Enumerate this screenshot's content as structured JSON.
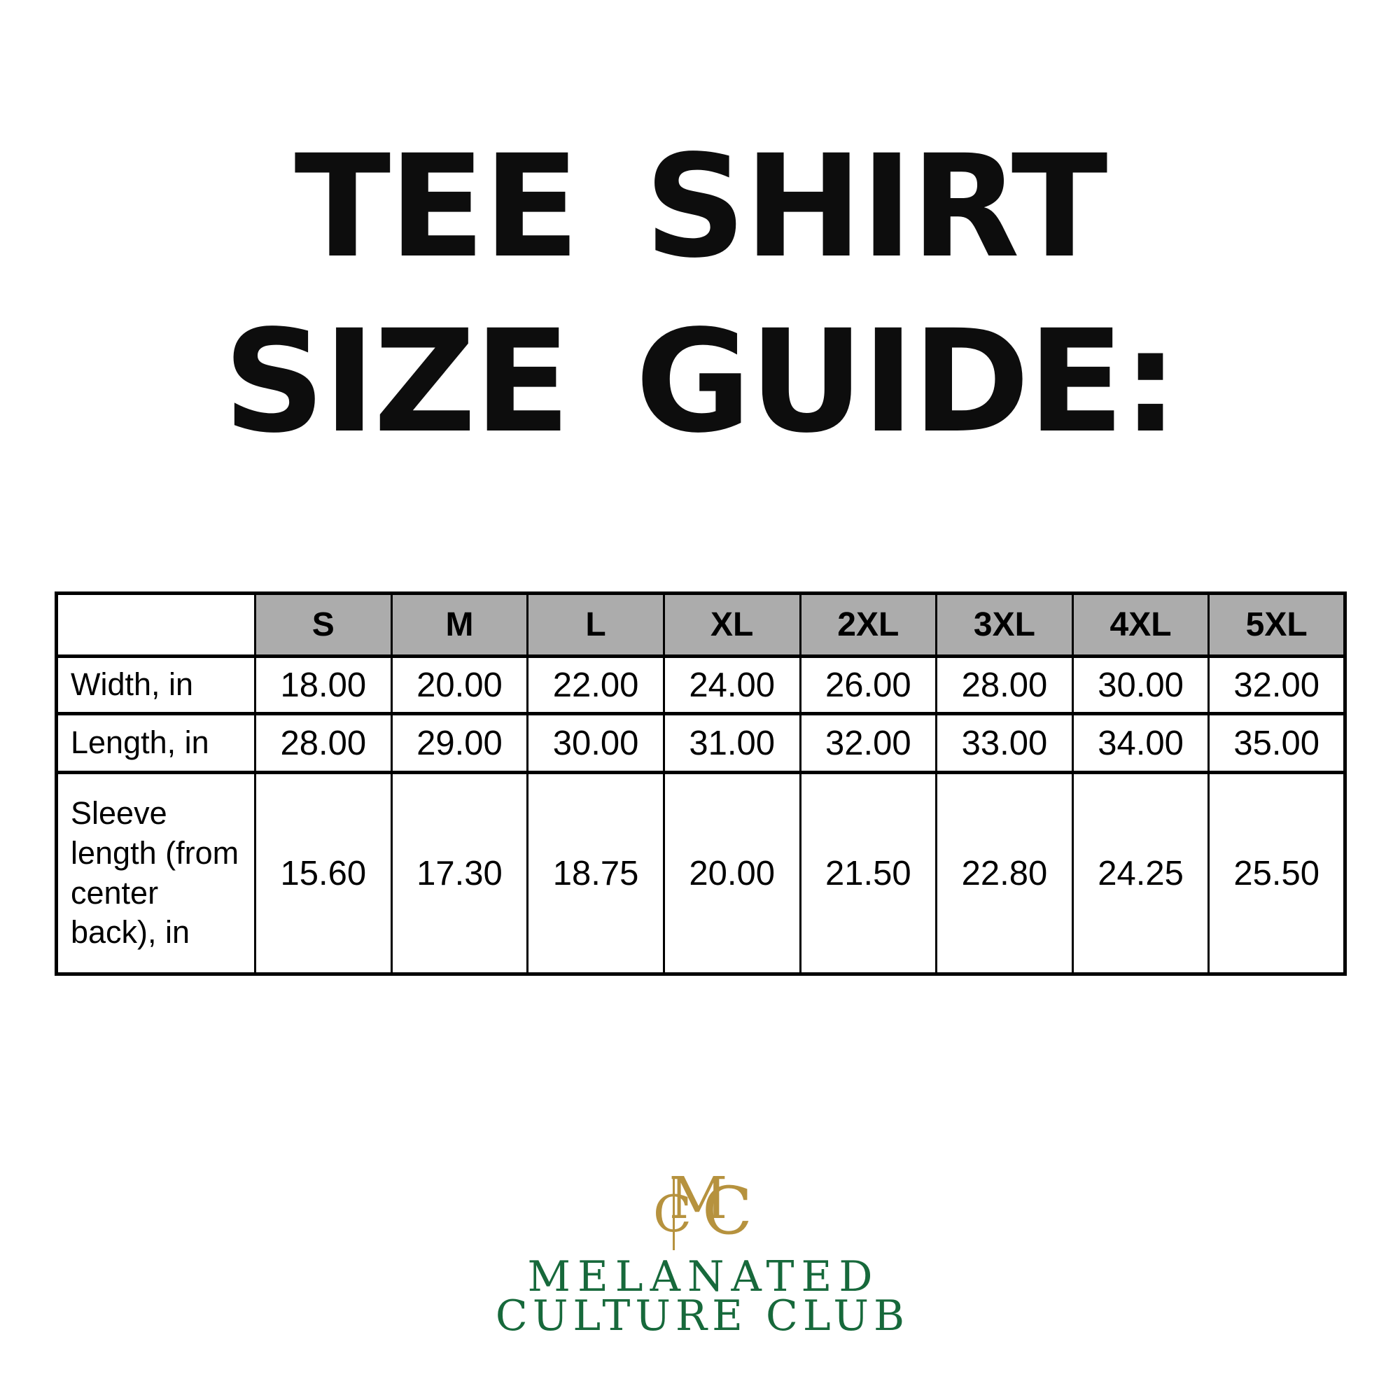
{
  "title": {
    "line1": "TEE SHIRT",
    "line2": "SIZE GUIDE:"
  },
  "size_table": {
    "corner": "",
    "columns": [
      "S",
      "M",
      "L",
      "XL",
      "2XL",
      "3XL",
      "4XL",
      "5XL"
    ],
    "rows": [
      {
        "label": "Width, in",
        "values": [
          "18.00",
          "20.00",
          "22.00",
          "24.00",
          "26.00",
          "28.00",
          "30.00",
          "32.00"
        ]
      },
      {
        "label": "Length, in",
        "values": [
          "28.00",
          "29.00",
          "30.00",
          "31.00",
          "32.00",
          "33.00",
          "34.00",
          "35.00"
        ]
      },
      {
        "label": "Sleeve\nlength (from\ncenter\nback), in",
        "values": [
          "15.60",
          "17.30",
          "18.75",
          "20.00",
          "21.50",
          "22.80",
          "24.25",
          "25.50"
        ]
      }
    ]
  },
  "brand": {
    "monogram": {
      "m": "M",
      "c_left": "C",
      "c_right": "C"
    },
    "name_line1": "MELANATED",
    "name_line2": "CULTURE CLUB"
  },
  "colors": {
    "title_text": "#0D0D0D",
    "table_border": "#000000",
    "header_fill": "#ACACAC",
    "monogram_gold": "#B6923E",
    "brand_green": "#17693B"
  }
}
